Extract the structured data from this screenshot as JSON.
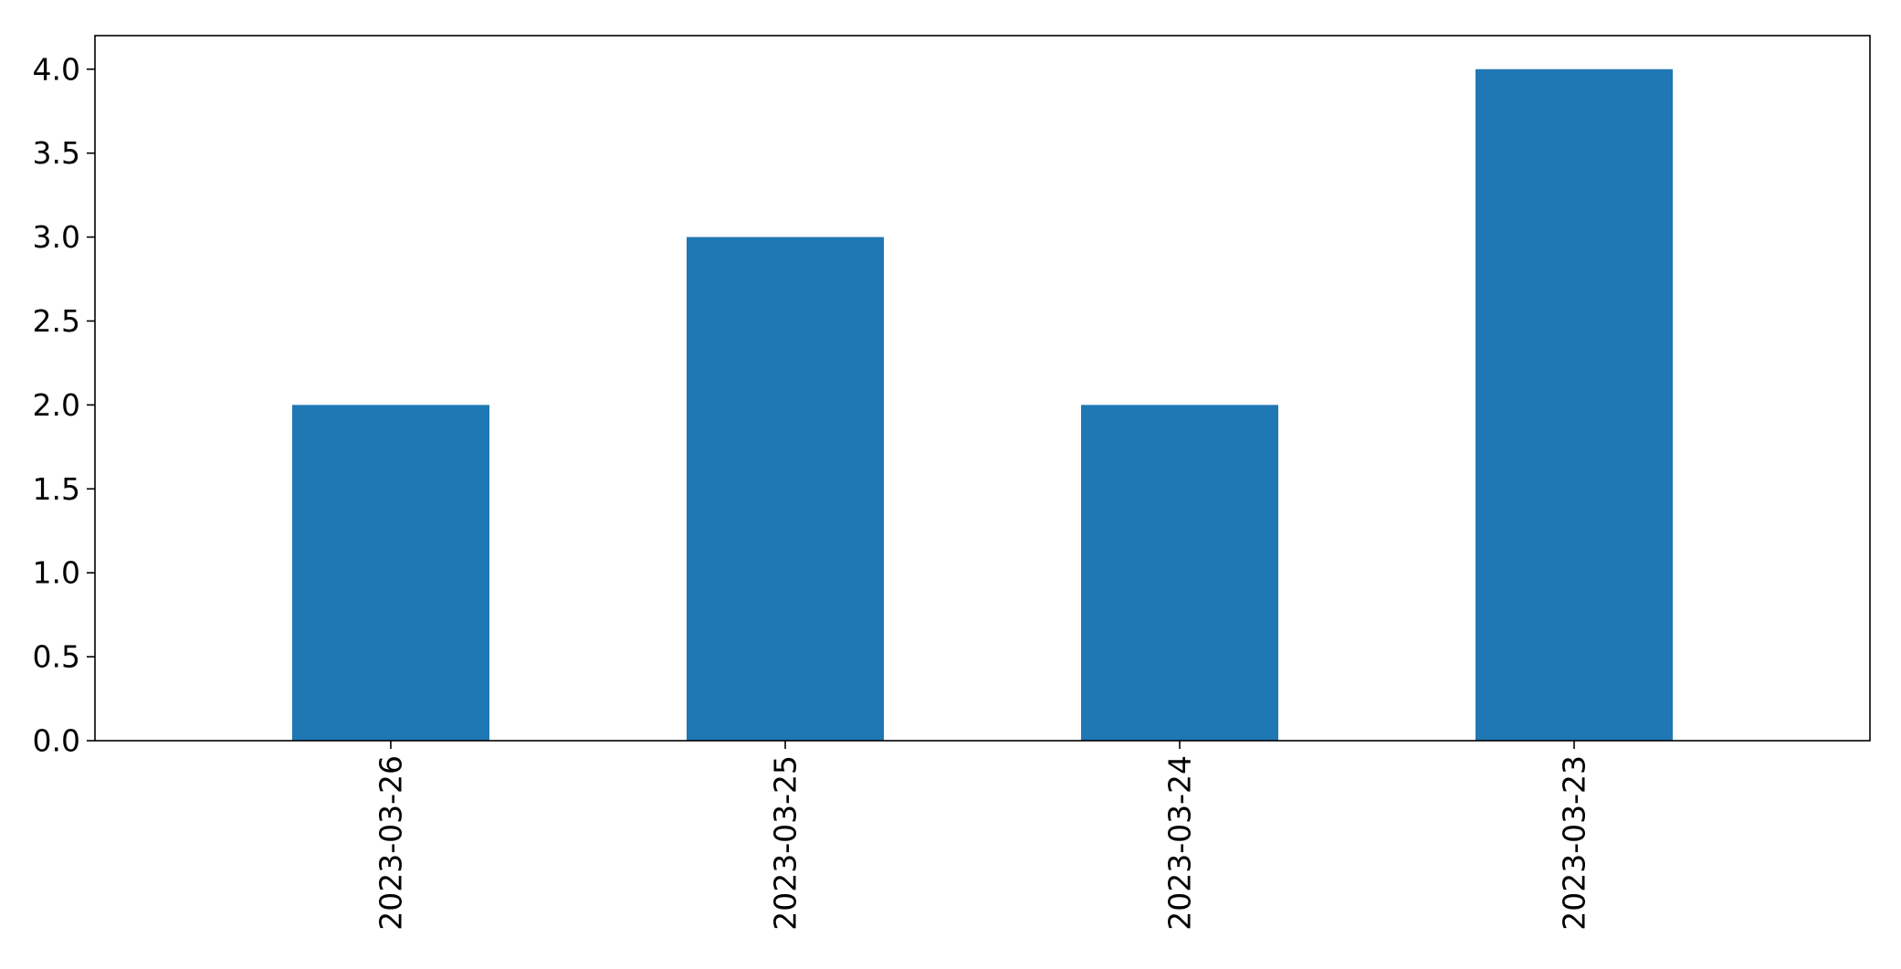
{
  "chart_data": {
    "type": "bar",
    "categories": [
      "2023-03-26",
      "2023-03-25",
      "2023-03-24",
      "2023-03-23"
    ],
    "values": [
      2,
      3,
      2,
      4
    ],
    "title": "",
    "xlabel": "",
    "ylabel": "",
    "ylim": [
      0,
      4.2
    ],
    "yticks": [
      0.0,
      0.5,
      1.0,
      1.5,
      2.0,
      2.5,
      3.0,
      3.5,
      4.0
    ],
    "ytick_labels": [
      "0.0",
      "0.5",
      "1.0",
      "1.5",
      "2.0",
      "2.5",
      "3.0",
      "3.5",
      "4.0"
    ],
    "xtick_rotation": "vertical",
    "grid": false,
    "legend": "none",
    "bar_color": "#1f77b4"
  }
}
